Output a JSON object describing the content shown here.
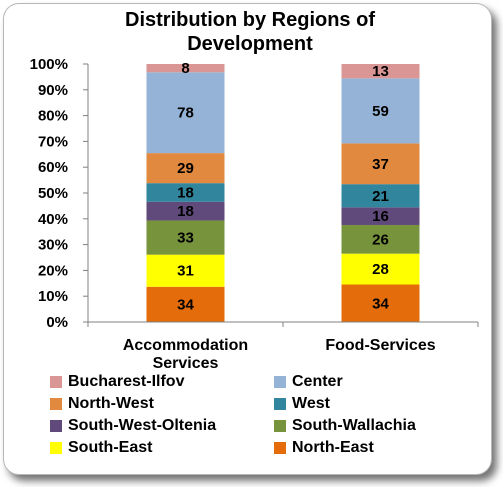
{
  "chart_data": {
    "type": "bar",
    "stacked": "percent",
    "title": "Distribution by Regions of Development",
    "categories": [
      "Accommodation Services",
      "Food-Services"
    ],
    "category_lines": [
      [
        "Accommodation",
        "Services"
      ],
      [
        "Food-Services"
      ]
    ],
    "ylim": [
      0,
      100
    ],
    "yticks": [
      "0%",
      "10%",
      "20%",
      "30%",
      "40%",
      "50%",
      "60%",
      "70%",
      "80%",
      "90%",
      "100%"
    ],
    "grid": false,
    "legend_position": "bottom",
    "series": [
      {
        "name": "North-East",
        "color": "#e46c0a",
        "values": [
          34,
          34
        ]
      },
      {
        "name": "South-East",
        "color": "#ffff00",
        "values": [
          31,
          28
        ]
      },
      {
        "name": "South-Wallachia",
        "color": "#77933c",
        "values": [
          33,
          26
        ]
      },
      {
        "name": "South-West-Oltenia",
        "color": "#604a7b",
        "values": [
          18,
          16
        ]
      },
      {
        "name": "West",
        "color": "#31859c",
        "values": [
          18,
          21
        ]
      },
      {
        "name": "North-West",
        "color": "#e1893f",
        "values": [
          29,
          37
        ]
      },
      {
        "name": "Center",
        "color": "#95b3d7",
        "values": [
          78,
          59
        ]
      },
      {
        "name": "Bucharest-Ilfov",
        "color": "#d99694",
        "values": [
          8,
          13
        ]
      }
    ],
    "legend_order": [
      "Bucharest-Ilfov",
      "Center",
      "North-West",
      "West",
      "South-West-Oltenia",
      "South-Wallachia",
      "South-East",
      "North-East"
    ]
  }
}
